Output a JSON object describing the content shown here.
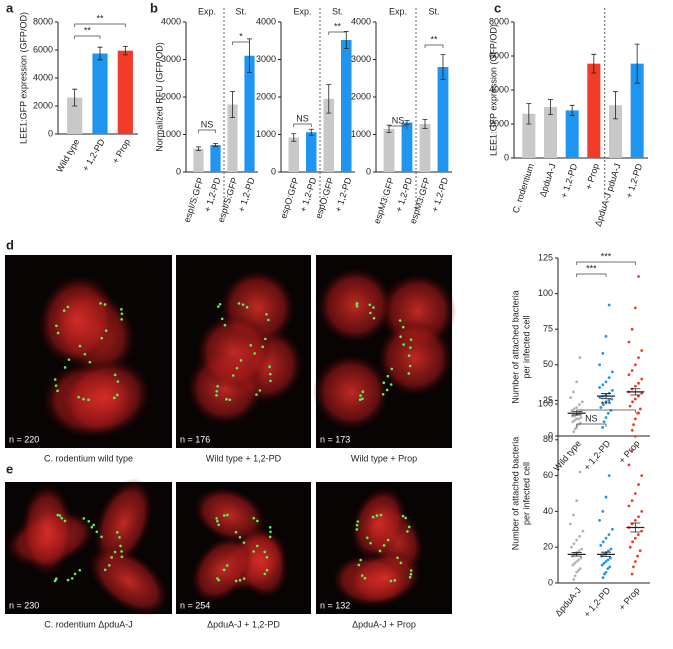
{
  "panel_labels": [
    "a",
    "b",
    "c",
    "d",
    "e"
  ],
  "chart_data": [
    {
      "type": "bar",
      "ylabel": "LEE1:GFP expression (GFP/OD)",
      "categories": [
        "Wild type",
        "+ 1,2-PD",
        "+ Prop"
      ],
      "values": [
        2600,
        5750,
        5950
      ],
      "errors": [
        600,
        450,
        300
      ],
      "colors": [
        "#c8c8c8",
        "#1e96f0",
        "#f03c28"
      ],
      "ylim": [
        0,
        8000
      ],
      "yticks": [
        0,
        2000,
        4000,
        6000,
        8000
      ],
      "annotations": [
        "**",
        "**"
      ]
    },
    {
      "type": "bar",
      "ylabel": "Normalized RFU (GFP/OD)",
      "group_labels": [
        "Exp.",
        "St."
      ],
      "categories": [
        "espI/S:GFP",
        "+ 1,2-PD",
        "espI/S:GFP",
        "+ 1,2-PD"
      ],
      "values": [
        620,
        720,
        1800,
        3100
      ],
      "errors": [
        50,
        40,
        350,
        450
      ],
      "colors": [
        "#c8c8c8",
        "#1e96f0",
        "#c8c8c8",
        "#1e96f0"
      ],
      "ylim": [
        0,
        4000
      ],
      "yticks": [
        0,
        1000,
        2000,
        3000,
        4000
      ],
      "annotations": [
        "NS",
        "*"
      ]
    },
    {
      "type": "bar",
      "group_labels": [
        "Exp.",
        "St."
      ],
      "categories": [
        "espO:GFP",
        "+ 1,2-PD",
        "espO:GFP",
        "+ 1,2-PD"
      ],
      "values": [
        920,
        1060,
        1950,
        3520
      ],
      "errors": [
        100,
        80,
        380,
        230
      ],
      "colors": [
        "#c8c8c8",
        "#1e96f0",
        "#c8c8c8",
        "#1e96f0"
      ],
      "ylim": [
        0,
        4000
      ],
      "yticks": [
        0,
        1000,
        2000,
        3000,
        4000
      ],
      "annotations": [
        "NS",
        "**"
      ]
    },
    {
      "type": "bar",
      "group_labels": [
        "Exp.",
        "St."
      ],
      "categories": [
        "espM3:GFP",
        "+ 1,2-PD",
        "espM3:GFP",
        "+ 1,2-PD"
      ],
      "values": [
        1150,
        1320,
        1280,
        2800
      ],
      "errors": [
        100,
        50,
        120,
        330
      ],
      "colors": [
        "#c8c8c8",
        "#1e96f0",
        "#c8c8c8",
        "#1e96f0"
      ],
      "ylim": [
        0,
        4000
      ],
      "yticks": [
        0,
        1000,
        2000,
        3000,
        4000
      ],
      "annotations": [
        "NS",
        "**"
      ]
    },
    {
      "type": "bar",
      "ylabel": "LEE1:GFP expression (GFP/OD)",
      "categories": [
        "C. rodentium",
        "ΔpduA-J",
        "+ 1,2-PD",
        "+ Prop",
        "ΔpduA-J pduA-J",
        "+ 1,2-PD"
      ],
      "values": [
        2600,
        3000,
        2800,
        5550,
        3100,
        5550
      ],
      "errors": [
        600,
        450,
        300,
        550,
        800,
        1150
      ],
      "colors": [
        "#c8c8c8",
        "#c8c8c8",
        "#1e96f0",
        "#f03c28",
        "#c8c8c8",
        "#1e96f0"
      ],
      "ylim": [
        0,
        8000
      ],
      "yticks": [
        0,
        2000,
        4000,
        6000,
        8000
      ]
    },
    {
      "type": "dot",
      "ylabel": [
        "Number of attached bacteria",
        "per infected cell"
      ],
      "categories": [
        "Wild type",
        "+ 1,2-PD",
        "+ Prop"
      ],
      "colors": [
        "#b4b4b4",
        "#1e96f0",
        "#f03c28"
      ],
      "points": [
        [
          3,
          5,
          6,
          8,
          9,
          10,
          11,
          12,
          12,
          13,
          14,
          14,
          15,
          16,
          17,
          18,
          19,
          20,
          22,
          24,
          27,
          31,
          38,
          55
        ],
        [
          6,
          10,
          13,
          16,
          18,
          20,
          22,
          24,
          25,
          26,
          27,
          28,
          29,
          30,
          32,
          34,
          36,
          38,
          41,
          45,
          50,
          58,
          70,
          92
        ],
        [
          4,
          8,
          12,
          16,
          19,
          21,
          24,
          26,
          28,
          30,
          31,
          33,
          35,
          37,
          40,
          43,
          46,
          50,
          55,
          60,
          66,
          75,
          90,
          112
        ]
      ],
      "means": [
        16,
        28,
        31
      ],
      "errors": [
        1.2,
        1.8,
        2.2
      ],
      "ylim": [
        0,
        125
      ],
      "yticks": [
        0,
        25,
        50,
        75,
        100,
        125
      ],
      "annotations": [
        "***",
        "***"
      ]
    },
    {
      "type": "dot",
      "ylabel": [
        "Number of attached bacteria",
        "per infected cell"
      ],
      "categories": [
        "ΔpduA-J",
        "+ 1,2-PD",
        "+ Prop"
      ],
      "colors": [
        "#b4b4b4",
        "#1e96f0",
        "#f03c28"
      ],
      "points": [
        [
          2,
          4,
          6,
          7,
          8,
          10,
          11,
          12,
          13,
          14,
          15,
          16,
          17,
          18,
          19,
          20,
          22,
          24,
          26,
          29,
          33,
          38,
          46,
          62
        ],
        [
          3,
          5,
          6,
          8,
          9,
          10,
          11,
          12,
          13,
          14,
          15,
          16,
          17,
          18,
          19,
          21,
          23,
          25,
          27,
          30,
          35,
          40,
          48,
          60
        ],
        [
          5,
          9,
          12,
          15,
          18,
          20,
          23,
          25,
          27,
          29,
          31,
          33,
          35,
          37,
          40,
          43,
          46,
          50,
          55,
          60,
          66,
          74,
          82,
          95
        ]
      ],
      "means": [
        16,
        16,
        31
      ],
      "errors": [
        1.0,
        1.2,
        2.5
      ],
      "ylim": [
        0,
        100
      ],
      "yticks": [
        0,
        20,
        40,
        60,
        80,
        100
      ],
      "annotations": [
        "NS",
        "***"
      ]
    }
  ],
  "micrographs": [
    {
      "n": "n = 220",
      "caption": "C. rodentium wild type"
    },
    {
      "n": "n = 176",
      "caption": "Wild type + 1,2-PD"
    },
    {
      "n": "n = 173",
      "caption": "Wild type + Prop"
    },
    {
      "n": "n = 230",
      "caption": "C. rodentium ΔpduA-J"
    },
    {
      "n": "n = 254",
      "caption": "ΔpduA-J + 1,2-PD"
    },
    {
      "n": "n = 132",
      "caption": "ΔpduA-J + Prop"
    }
  ]
}
